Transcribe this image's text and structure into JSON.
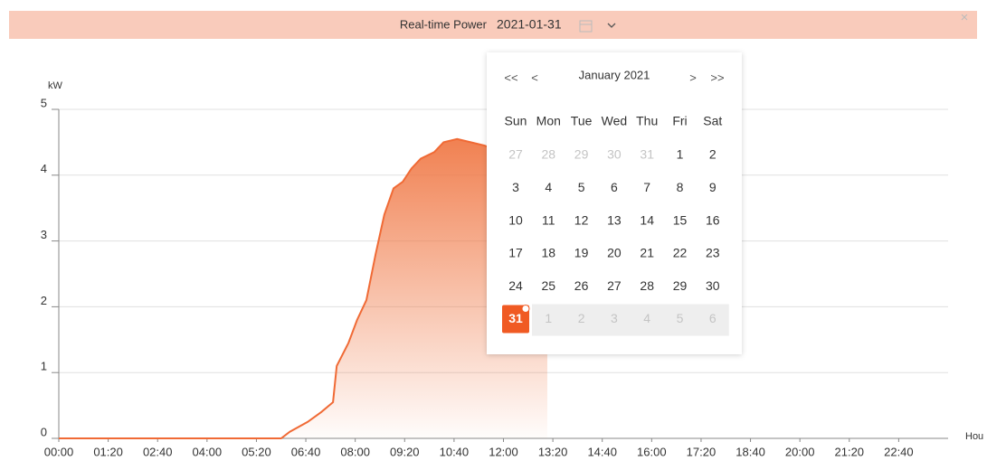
{
  "header": {
    "title": "Real-time Power",
    "date": "2021-01-31",
    "close": "×"
  },
  "chart_data": {
    "type": "area",
    "y_label": "kW",
    "x_label": "Hou",
    "x": [
      0,
      360,
      374,
      403,
      425,
      444,
      450,
      469,
      483,
      498,
      513,
      527,
      542,
      557,
      571,
      586,
      608,
      623,
      645,
      667,
      689,
      703,
      725,
      747,
      769,
      791
    ],
    "values": [
      0,
      0,
      0.1,
      0.25,
      0.4,
      0.55,
      1.1,
      1.45,
      1.8,
      2.1,
      2.8,
      3.4,
      3.8,
      3.9,
      4.1,
      4.25,
      4.35,
      4.5,
      4.55,
      4.5,
      4.45,
      4.4,
      4.1,
      3.6,
      3.0,
      2.2
    ],
    "color": "#f06a35",
    "xlim": [
      0,
      1440
    ],
    "xticks": [
      {
        "value": 0,
        "label": "00:00"
      },
      {
        "value": 80,
        "label": "01:20"
      },
      {
        "value": 160,
        "label": "02:40"
      },
      {
        "value": 240,
        "label": "04:00"
      },
      {
        "value": 320,
        "label": "05:20"
      },
      {
        "value": 400,
        "label": "06:40"
      },
      {
        "value": 480,
        "label": "08:00"
      },
      {
        "value": 560,
        "label": "09:20"
      },
      {
        "value": 640,
        "label": "10:40"
      },
      {
        "value": 720,
        "label": "12:00"
      },
      {
        "value": 800,
        "label": "13:20"
      },
      {
        "value": 880,
        "label": "14:40"
      },
      {
        "value": 960,
        "label": "16:00"
      },
      {
        "value": 1040,
        "label": "17:20"
      },
      {
        "value": 1120,
        "label": "18:40"
      },
      {
        "value": 1200,
        "label": "20:00"
      },
      {
        "value": 1280,
        "label": "21:20"
      },
      {
        "value": 1360,
        "label": "22:40"
      }
    ],
    "ylim": [
      0,
      5
    ],
    "yticks": [
      0,
      1,
      2,
      3,
      4,
      5
    ],
    "grid": true
  },
  "calendar": {
    "nav": [
      "<<",
      "<",
      ">",
      ">>"
    ],
    "month": "January 2021",
    "weekdays": [
      "Sun",
      "Mon",
      "Tue",
      "Wed",
      "Thu",
      "Fri",
      "Sat"
    ],
    "weeks": [
      [
        27,
        28,
        29,
        30,
        31,
        1,
        2
      ],
      [
        3,
        4,
        5,
        6,
        7,
        8,
        9
      ],
      [
        10,
        11,
        12,
        13,
        14,
        15,
        16
      ],
      [
        17,
        18,
        19,
        20,
        21,
        22,
        23
      ],
      [
        24,
        25,
        26,
        27,
        28,
        29,
        30
      ],
      [
        31,
        1,
        2,
        3,
        4,
        5,
        6
      ]
    ]
  }
}
